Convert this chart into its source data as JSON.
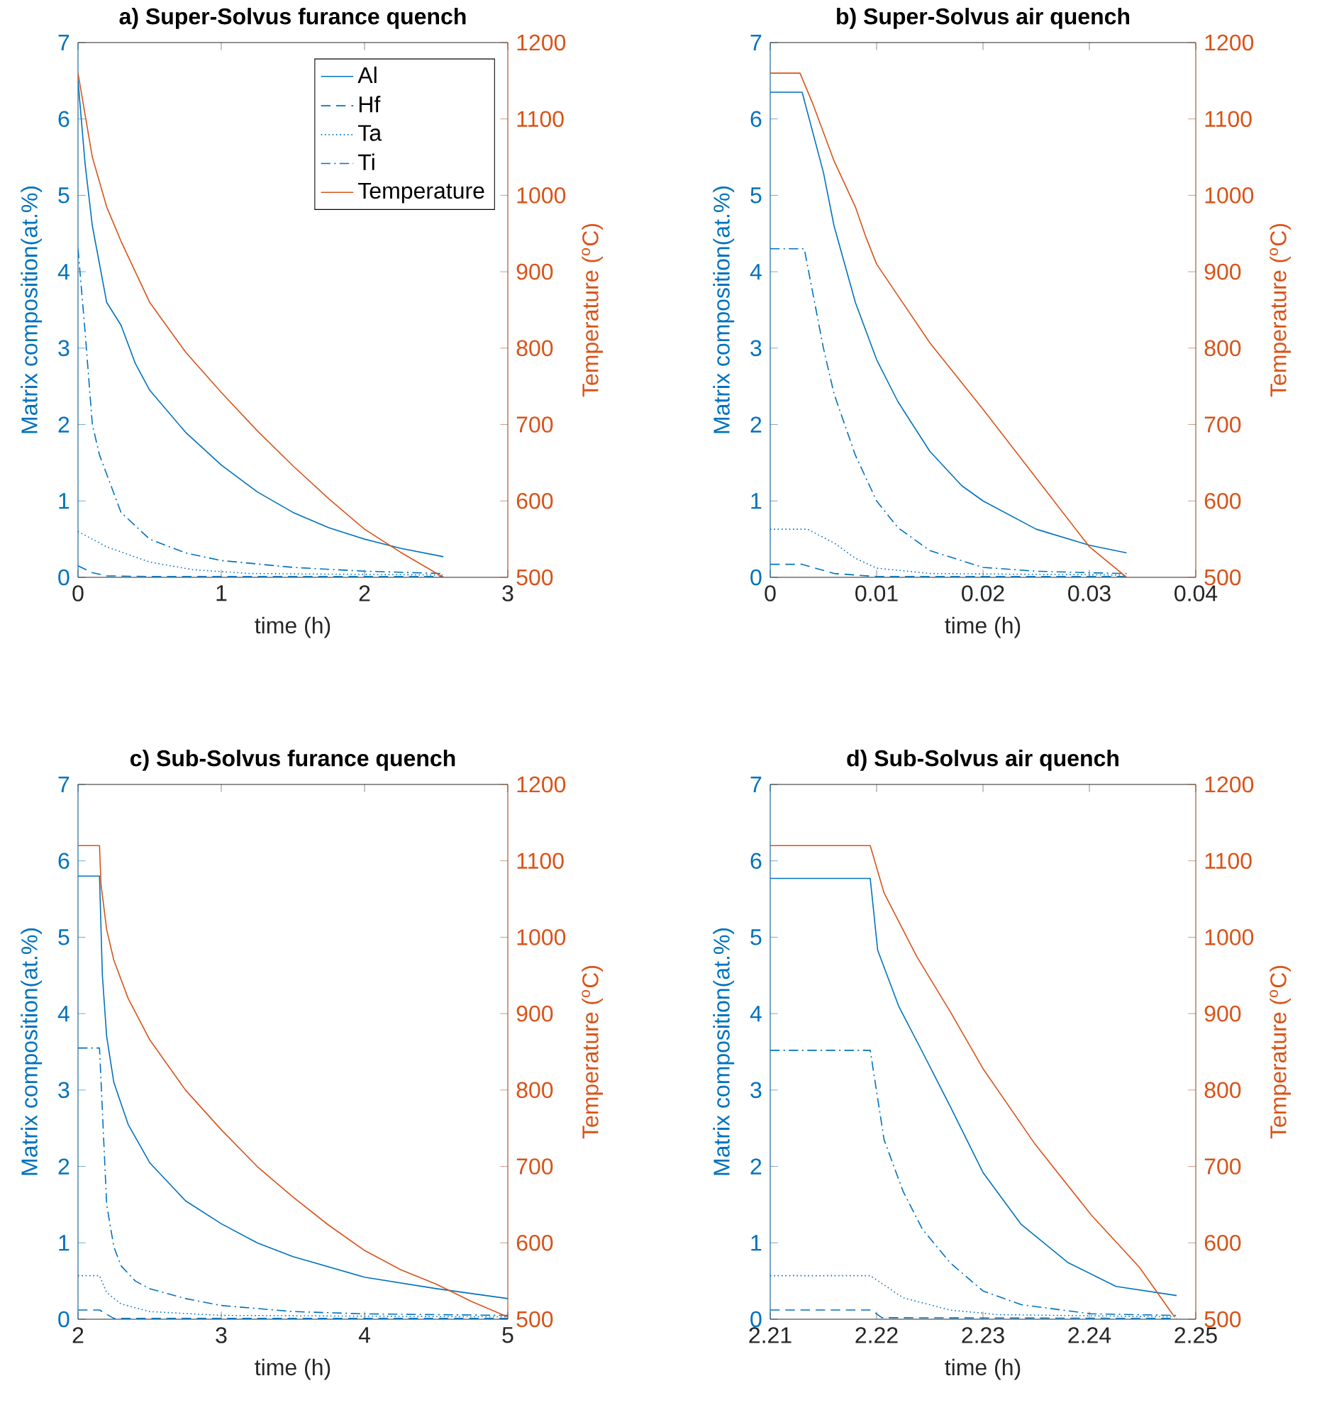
{
  "chart_data": [
    {
      "type": "line",
      "title": "a) Super-Solvus furance quench",
      "xlabel": "time (h)",
      "ylabel": "Matrix composition(at.%)",
      "y2label": "Temperature ($^{o}$C)",
      "xlim": [
        0,
        3
      ],
      "xticks": [
        0,
        1,
        2,
        3
      ],
      "ylim": [
        0,
        7
      ],
      "yticks": [
        0,
        1,
        2,
        3,
        4,
        5,
        6,
        7
      ],
      "y2lim": [
        500,
        1200
      ],
      "y2ticks": [
        500,
        600,
        700,
        800,
        900,
        1000,
        1100,
        1200
      ],
      "legend": "top right",
      "series": [
        {
          "name": "Al",
          "color": "#0072bd",
          "line_style": "solid",
          "x": [
            0,
            0.05,
            0.1,
            0.2,
            0.3,
            0.4,
            0.5,
            0.75,
            1.0,
            1.25,
            1.5,
            1.75,
            2.0,
            2.25,
            2.55
          ],
          "values": [
            6.5,
            5.4,
            4.6,
            3.6,
            3.3,
            2.8,
            2.45,
            1.9,
            1.47,
            1.12,
            0.85,
            0.65,
            0.5,
            0.38,
            0.27
          ]
        },
        {
          "name": "Hf",
          "color": "#0072bd",
          "line_style": "dashed",
          "x": [
            0,
            0.1,
            0.2,
            0.5,
            1.0,
            2.55
          ],
          "values": [
            0.15,
            0.06,
            0.02,
            0.01,
            0.01,
            0.01
          ]
        },
        {
          "name": "Ta",
          "color": "#0072bd",
          "line_style": "dotted",
          "x": [
            0,
            0.1,
            0.2,
            0.5,
            0.8,
            1.2,
            2.55
          ],
          "values": [
            0.6,
            0.5,
            0.4,
            0.2,
            0.1,
            0.05,
            0.03
          ]
        },
        {
          "name": "Ti",
          "color": "#0072bd",
          "line_style": "dashdot",
          "x": [
            0,
            0.05,
            0.1,
            0.15,
            0.2,
            0.3,
            0.5,
            0.75,
            1.0,
            1.5,
            2.0,
            2.55
          ],
          "values": [
            4.3,
            3.2,
            2.0,
            1.6,
            1.35,
            0.85,
            0.5,
            0.32,
            0.22,
            0.13,
            0.08,
            0.05
          ]
        },
        {
          "name": "Temperature",
          "color": "#d95319",
          "line_style": "solid",
          "axis": "y2",
          "x": [
            0,
            0.1,
            0.2,
            0.3,
            0.5,
            0.75,
            1.0,
            1.25,
            1.5,
            1.75,
            2.0,
            2.25,
            2.55
          ],
          "values": [
            1160,
            1050,
            985,
            940,
            860,
            795,
            742,
            692,
            646,
            603,
            563,
            533,
            500
          ]
        }
      ]
    },
    {
      "type": "line",
      "title": "b) Super-Solvus air quench",
      "xlabel": "time (h)",
      "ylabel": "Matrix composition(at.%)",
      "y2label": "Temperature ($^{o}$C)",
      "xlim": [
        0,
        0.04
      ],
      "xticks": [
        0,
        0.01,
        0.02,
        0.03,
        0.04
      ],
      "ylim": [
        0,
        7
      ],
      "yticks": [
        0,
        1,
        2,
        3,
        4,
        5,
        6,
        7
      ],
      "y2lim": [
        500,
        1200
      ],
      "y2ticks": [
        500,
        600,
        700,
        800,
        900,
        1000,
        1100,
        1200
      ],
      "series": [
        {
          "color": "#0072bd",
          "line_style": "solid",
          "x": [
            0,
            0.003,
            0.005,
            0.006,
            0.008,
            0.01,
            0.012,
            0.015,
            0.018,
            0.02,
            0.025,
            0.03,
            0.0335
          ],
          "values": [
            6.35,
            6.35,
            5.3,
            4.6,
            3.6,
            2.85,
            2.3,
            1.65,
            1.2,
            1.0,
            0.63,
            0.42,
            0.32
          ]
        },
        {
          "color": "#0072bd",
          "line_style": "dashed",
          "x": [
            0,
            0.003,
            0.006,
            0.01,
            0.0335
          ],
          "values": [
            0.17,
            0.17,
            0.05,
            0.01,
            0.01
          ]
        },
        {
          "color": "#0072bd",
          "line_style": "dotted",
          "x": [
            0,
            0.0035,
            0.006,
            0.008,
            0.01,
            0.015,
            0.0335
          ],
          "values": [
            0.63,
            0.63,
            0.45,
            0.25,
            0.12,
            0.05,
            0.03
          ]
        },
        {
          "color": "#0072bd",
          "line_style": "dashdot",
          "x": [
            0,
            0.0032,
            0.005,
            0.006,
            0.008,
            0.01,
            0.012,
            0.015,
            0.02,
            0.025,
            0.03,
            0.0335
          ],
          "values": [
            4.3,
            4.3,
            3.0,
            2.4,
            1.6,
            1.0,
            0.65,
            0.35,
            0.13,
            0.08,
            0.06,
            0.05
          ]
        },
        {
          "color": "#d95319",
          "line_style": "solid",
          "axis": "y2",
          "x": [
            0,
            0.0028,
            0.004,
            0.006,
            0.008,
            0.009,
            0.01,
            0.015,
            0.02,
            0.025,
            0.03,
            0.0335
          ],
          "values": [
            1160,
            1160,
            1120,
            1045,
            985,
            945,
            910,
            807,
            720,
            630,
            540,
            500
          ]
        }
      ]
    },
    {
      "type": "line",
      "title": "c) Sub-Solvus furance quench",
      "xlabel": "time (h)",
      "ylabel": "Matrix composition(at.%)",
      "y2label": "Temperature ($^{o}$C)",
      "xlim": [
        2,
        5
      ],
      "xticks": [
        2,
        3,
        4,
        5
      ],
      "ylim": [
        0,
        7
      ],
      "yticks": [
        0,
        1,
        2,
        3,
        4,
        5,
        6,
        7
      ],
      "y2lim": [
        500,
        1200
      ],
      "y2ticks": [
        500,
        600,
        700,
        800,
        900,
        1000,
        1100,
        1200
      ],
      "series": [
        {
          "color": "#0072bd",
          "line_style": "solid",
          "x": [
            2.0,
            2.15,
            2.17,
            2.2,
            2.25,
            2.35,
            2.5,
            2.75,
            3.0,
            3.25,
            3.5,
            4.0,
            4.5,
            5.0
          ],
          "values": [
            5.8,
            5.8,
            4.5,
            3.7,
            3.1,
            2.55,
            2.05,
            1.55,
            1.25,
            1.0,
            0.82,
            0.55,
            0.4,
            0.27
          ]
        },
        {
          "color": "#0072bd",
          "line_style": "dashed",
          "x": [
            2.0,
            2.15,
            2.25,
            5.0
          ],
          "values": [
            0.12,
            0.12,
            0.01,
            0.01
          ]
        },
        {
          "color": "#0072bd",
          "line_style": "dotted",
          "x": [
            2.0,
            2.15,
            2.2,
            2.3,
            2.5,
            3.0,
            5.0
          ],
          "values": [
            0.57,
            0.57,
            0.35,
            0.2,
            0.1,
            0.05,
            0.03
          ]
        },
        {
          "color": "#0072bd",
          "line_style": "dashdot",
          "x": [
            2.0,
            2.15,
            2.2,
            2.25,
            2.3,
            2.4,
            2.5,
            2.75,
            3.0,
            3.5,
            4.0,
            5.0
          ],
          "values": [
            3.55,
            3.55,
            1.5,
            0.95,
            0.7,
            0.5,
            0.4,
            0.27,
            0.18,
            0.1,
            0.07,
            0.05
          ]
        },
        {
          "color": "#d95319",
          "line_style": "solid",
          "axis": "y2",
          "x": [
            2.0,
            2.15,
            2.16,
            2.2,
            2.25,
            2.35,
            2.5,
            2.75,
            3.0,
            3.25,
            3.5,
            3.75,
            4.0,
            4.25,
            4.5,
            4.75,
            5.0
          ],
          "values": [
            1120,
            1120,
            1070,
            1010,
            970,
            920,
            866,
            800,
            748,
            700,
            660,
            623,
            590,
            565,
            546,
            523,
            503
          ]
        }
      ]
    },
    {
      "type": "line",
      "title": "d) Sub-Solvus air quench",
      "xlabel": "time (h)",
      "ylabel": "Matrix composition(at.%)",
      "y2label": "Temperature ($^{o}$C)",
      "xlim": [
        2.21,
        2.25
      ],
      "xticks": [
        2.21,
        2.22,
        2.23,
        2.24,
        2.25
      ],
      "ylim": [
        0,
        7
      ],
      "yticks": [
        0,
        1,
        2,
        3,
        4,
        5,
        6,
        7
      ],
      "y2lim": [
        500,
        1200
      ],
      "y2ticks": [
        500,
        600,
        700,
        800,
        900,
        1000,
        1100,
        1200
      ],
      "series": [
        {
          "color": "#0072bd",
          "line_style": "solid",
          "x": [
            2.21,
            2.2194,
            2.2201,
            2.2221,
            2.2243,
            2.2269,
            2.23,
            2.2336,
            2.238,
            2.2425,
            2.2482
          ],
          "values": [
            5.77,
            5.77,
            4.83,
            4.09,
            3.5,
            2.79,
            1.92,
            1.24,
            0.74,
            0.43,
            0.31
          ]
        },
        {
          "color": "#0072bd",
          "line_style": "dashed",
          "x": [
            2.21,
            2.2195,
            2.2205,
            2.2482
          ],
          "values": [
            0.12,
            0.12,
            0.02,
            0.01
          ]
        },
        {
          "color": "#0072bd",
          "line_style": "dotted",
          "x": [
            2.21,
            2.2194,
            2.2225,
            2.2269,
            2.2314,
            2.2482
          ],
          "values": [
            0.57,
            0.57,
            0.28,
            0.12,
            0.06,
            0.03
          ]
        },
        {
          "color": "#0072bd",
          "line_style": "dashdot",
          "x": [
            2.21,
            2.2194,
            2.2207,
            2.2225,
            2.2243,
            2.2269,
            2.23,
            2.2336,
            2.2402,
            2.2482
          ],
          "values": [
            3.52,
            3.52,
            2.35,
            1.67,
            1.18,
            0.74,
            0.37,
            0.19,
            0.07,
            0.05
          ]
        },
        {
          "color": "#d95319",
          "line_style": "solid",
          "axis": "y2",
          "x": [
            2.21,
            2.2194,
            2.2207,
            2.2238,
            2.2269,
            2.23,
            2.2349,
            2.2402,
            2.2447,
            2.248
          ],
          "values": [
            1120,
            1120,
            1058,
            974,
            903,
            828,
            729,
            636,
            568,
            503
          ]
        }
      ]
    }
  ]
}
